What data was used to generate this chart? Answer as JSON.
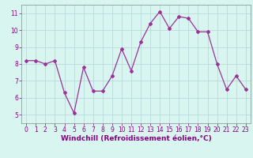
{
  "x": [
    0,
    1,
    2,
    3,
    4,
    5,
    6,
    7,
    8,
    9,
    10,
    11,
    12,
    13,
    14,
    15,
    16,
    17,
    18,
    19,
    20,
    21,
    22,
    23
  ],
  "y": [
    8.2,
    8.2,
    8.0,
    8.2,
    6.3,
    5.1,
    7.8,
    6.4,
    6.4,
    7.3,
    8.9,
    7.6,
    9.3,
    10.4,
    11.1,
    10.1,
    10.8,
    10.7,
    9.9,
    9.9,
    8.0,
    6.5,
    7.3,
    6.5
  ],
  "line_color": "#993399",
  "marker": "D",
  "markersize": 2,
  "bg_color": "#d8f5f0",
  "grid_color": "#b8dada",
  "xlabel": "Windchill (Refroidissement éolien,°C)",
  "ylim": [
    4.5,
    11.5
  ],
  "xlim": [
    -0.5,
    23.5
  ],
  "yticks": [
    5,
    6,
    7,
    8,
    9,
    10,
    11
  ],
  "xticks": [
    0,
    1,
    2,
    3,
    4,
    5,
    6,
    7,
    8,
    9,
    10,
    11,
    12,
    13,
    14,
    15,
    16,
    17,
    18,
    19,
    20,
    21,
    22,
    23
  ],
  "tick_fontsize": 5.5,
  "xlabel_fontsize": 6.5,
  "label_color": "#880088",
  "spine_color": "#888888",
  "axis_bg": "#d8f5f0",
  "linewidth": 0.9
}
